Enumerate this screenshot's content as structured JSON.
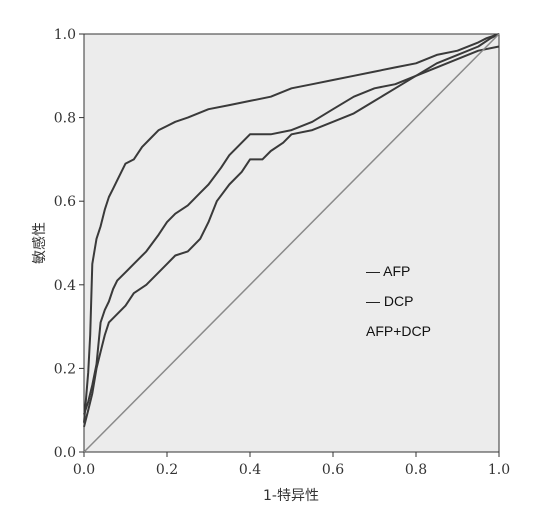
{
  "chart_data": {
    "type": "line",
    "xlabel": "1-特异性",
    "ylabel": "敏感性",
    "xlim": [
      0.0,
      1.0
    ],
    "ylim": [
      0.0,
      1.0
    ],
    "x_ticks": [
      "0.0",
      "0.2",
      "0.4",
      "0.6",
      "0.8",
      "1.0"
    ],
    "y_ticks": [
      "0.0",
      "0.2",
      "0.4",
      "0.6",
      "0.8",
      "1.0"
    ],
    "grid": false,
    "legend_position": "right-middle",
    "legend": [
      "— AFP",
      "— DCP",
      "AFP+DCP"
    ],
    "colors": {
      "plot_background": "#ececec",
      "curve": "#3a3a3a",
      "reference_line": "#8a8a8a",
      "axis": "#333333"
    },
    "series": [
      {
        "x": [
          0.0,
          0.005,
          0.01,
          0.015,
          0.02,
          0.03,
          0.04,
          0.05,
          0.06,
          0.07,
          0.08,
          0.1,
          0.12,
          0.14,
          0.16,
          0.18,
          0.2,
          0.22,
          0.25,
          0.3,
          0.35,
          0.4,
          0.45,
          0.5,
          0.55,
          0.6,
          0.65,
          0.7,
          0.75,
          0.8,
          0.85,
          0.9,
          0.95,
          0.97,
          1.0
        ],
        "y": [
          0.07,
          0.13,
          0.19,
          0.28,
          0.45,
          0.51,
          0.54,
          0.58,
          0.61,
          0.63,
          0.65,
          0.69,
          0.7,
          0.73,
          0.75,
          0.77,
          0.78,
          0.79,
          0.8,
          0.82,
          0.83,
          0.84,
          0.85,
          0.87,
          0.88,
          0.89,
          0.9,
          0.91,
          0.92,
          0.93,
          0.95,
          0.96,
          0.98,
          0.99,
          1.0
        ]
      },
      {
        "x": [
          0.0,
          0.01,
          0.02,
          0.03,
          0.04,
          0.05,
          0.06,
          0.07,
          0.08,
          0.1,
          0.12,
          0.15,
          0.18,
          0.2,
          0.22,
          0.25,
          0.28,
          0.3,
          0.33,
          0.35,
          0.38,
          0.4,
          0.45,
          0.5,
          0.55,
          0.6,
          0.65,
          0.7,
          0.75,
          0.8,
          0.85,
          0.9,
          0.95,
          0.98,
          1.0
        ],
        "y": [
          0.09,
          0.12,
          0.16,
          0.21,
          0.31,
          0.34,
          0.36,
          0.39,
          0.41,
          0.43,
          0.45,
          0.48,
          0.52,
          0.55,
          0.57,
          0.59,
          0.62,
          0.64,
          0.68,
          0.71,
          0.74,
          0.76,
          0.76,
          0.77,
          0.79,
          0.82,
          0.85,
          0.87,
          0.88,
          0.9,
          0.93,
          0.95,
          0.97,
          0.99,
          1.0
        ]
      },
      {
        "x": [
          0.0,
          0.01,
          0.02,
          0.03,
          0.04,
          0.05,
          0.06,
          0.08,
          0.1,
          0.12,
          0.15,
          0.18,
          0.2,
          0.22,
          0.25,
          0.28,
          0.3,
          0.32,
          0.35,
          0.38,
          0.4,
          0.43,
          0.45,
          0.48,
          0.5,
          0.55,
          0.6,
          0.65,
          0.7,
          0.75,
          0.8,
          0.85,
          0.9,
          0.95,
          1.0
        ],
        "y": [
          0.06,
          0.1,
          0.14,
          0.2,
          0.24,
          0.28,
          0.31,
          0.33,
          0.35,
          0.38,
          0.4,
          0.43,
          0.45,
          0.47,
          0.48,
          0.51,
          0.55,
          0.6,
          0.64,
          0.67,
          0.7,
          0.7,
          0.72,
          0.74,
          0.76,
          0.77,
          0.79,
          0.81,
          0.84,
          0.87,
          0.9,
          0.92,
          0.94,
          0.96,
          0.97
        ]
      },
      {
        "x": [
          0.0,
          1.0
        ],
        "y": [
          0.0,
          1.0
        ]
      }
    ]
  }
}
